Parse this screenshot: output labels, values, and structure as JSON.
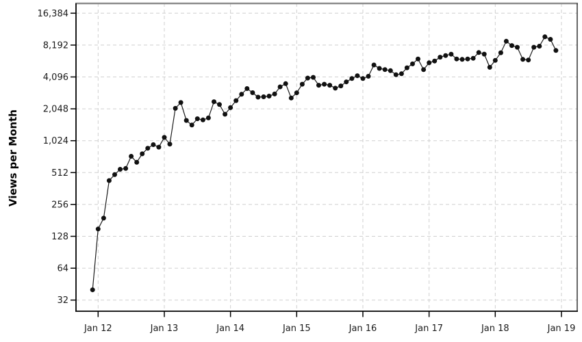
{
  "chart_data": {
    "type": "line",
    "title": "",
    "xlabel": "",
    "ylabel": "Views per Month",
    "y_scale": "log2",
    "ylim": [
      32,
      16384
    ],
    "grid": "dashed gray, both axes",
    "legend": "none",
    "marker": "filled-black-circle",
    "y_tick_values": [
      16384,
      8192,
      4096,
      2048,
      1024,
      512,
      256,
      128,
      64,
      32
    ],
    "y_tick_labels": [
      "16,384",
      "8,192",
      "4,096",
      "2,048",
      "1,024",
      "512",
      "256",
      "128",
      "64",
      "32"
    ],
    "x_tick_labels": [
      "Jan 12",
      "Jan 13",
      "Jan 14",
      "Jan 15",
      "Jan 16",
      "Jan 17",
      "Jan 18",
      "Jan 19"
    ],
    "series": [
      {
        "name": "views-per-month",
        "months": [
          "Dec 2011",
          "Jan 2012",
          "Feb 2012",
          "Mar 2012",
          "Apr 2012",
          "May 2012",
          "Jun 2012",
          "Jul 2012",
          "Aug 2012",
          "Sep 2012",
          "Oct 2012",
          "Nov 2012",
          "Dec 2012",
          "Jan 2013",
          "Feb 2013",
          "Mar 2013",
          "Apr 2013",
          "May 2013",
          "Jun 2013",
          "Jul 2013",
          "Aug 2013",
          "Sep 2013",
          "Oct 2013",
          "Nov 2013",
          "Dec 2013",
          "Jan 2014",
          "Feb 2014",
          "Mar 2014",
          "Apr 2014",
          "May 2014",
          "Jun 2014",
          "Jul 2014",
          "Aug 2014",
          "Sep 2014",
          "Oct 2014",
          "Nov 2014",
          "Dec 2014",
          "Jan 2015",
          "Feb 2015",
          "Mar 2015",
          "Apr 2015",
          "May 2015",
          "Jun 2015",
          "Jul 2015",
          "Aug 2015",
          "Sep 2015",
          "Oct 2015",
          "Nov 2015",
          "Dec 2015",
          "Jan 2016",
          "Feb 2016",
          "Mar 2016",
          "Apr 2016",
          "May 2016",
          "Jun 2016",
          "Jul 2016",
          "Aug 2016",
          "Sep 2016",
          "Oct 2016",
          "Nov 2016",
          "Dec 2016",
          "Jan 2017",
          "Feb 2017",
          "Mar 2017",
          "Apr 2017",
          "May 2017",
          "Jun 2017",
          "Jul 2017",
          "Aug 2017",
          "Sep 2017",
          "Oct 2017",
          "Nov 2017",
          "Dec 2017",
          "Jan 2018",
          "Feb 2018",
          "Mar 2018",
          "Apr 2018",
          "May 2018",
          "Jun 2018",
          "Jul 2018",
          "Aug 2018",
          "Sep 2018",
          "Oct 2018",
          "Nov 2018",
          "Dec 2018"
        ],
        "values": [
          40,
          150,
          190,
          430,
          490,
          550,
          560,
          730,
          640,
          770,
          870,
          940,
          890,
          1100,
          950,
          2070,
          2350,
          1590,
          1440,
          1650,
          1610,
          1680,
          2390,
          2250,
          1820,
          2100,
          2450,
          2810,
          3180,
          2910,
          2640,
          2660,
          2700,
          2830,
          3300,
          3540,
          2590,
          2900,
          3500,
          4000,
          4060,
          3420,
          3500,
          3420,
          3210,
          3370,
          3680,
          3960,
          4210,
          3960,
          4160,
          5310,
          4930,
          4810,
          4700,
          4300,
          4390,
          5000,
          5440,
          6060,
          4800,
          5570,
          5790,
          6300,
          6520,
          6720,
          6060,
          6000,
          6060,
          6150,
          6970,
          6730,
          5050,
          5870,
          6940,
          8900,
          8110,
          7810,
          6000,
          5920,
          7810,
          8000,
          9810,
          9280,
          7280
        ]
      }
    ]
  },
  "colors": {
    "background": "#ffffff",
    "line": "#1a1a1a",
    "marker": "#111111",
    "gridline": "#cfcfcf",
    "axis": "#000000",
    "top_border": "#8c8c8c",
    "tick_text": "#1a1a1a"
  }
}
